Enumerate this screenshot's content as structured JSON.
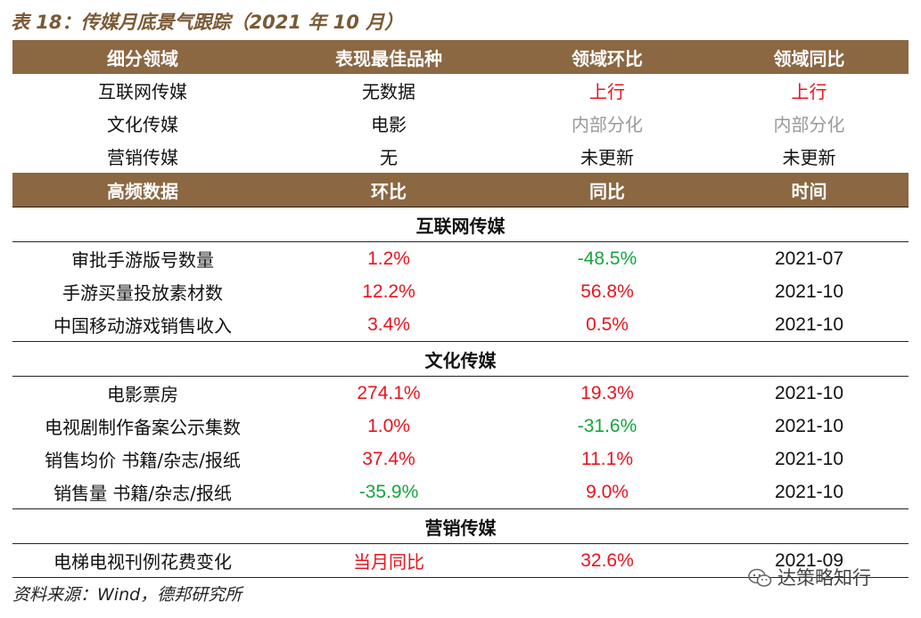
{
  "title": "表 18：传媒月底景气跟踪（2021 年 10 月）",
  "header1": [
    "细分领域",
    "表现最佳品种",
    "领域环比",
    "领域同比"
  ],
  "top_rows": [
    {
      "field": "互联网传媒",
      "best": "无数据",
      "mom": "上行",
      "yoy": "上行",
      "mom_color": "red",
      "yoy_color": "red"
    },
    {
      "field": "文化传媒",
      "best": "电影",
      "mom": "内部分化",
      "yoy": "内部分化",
      "mom_color": "gray",
      "yoy_color": "gray"
    },
    {
      "field": "营销传媒",
      "best": "无",
      "mom": "未更新",
      "yoy": "未更新",
      "mom_color": "black",
      "yoy_color": "black"
    }
  ],
  "header2": [
    "高频数据",
    "环比",
    "同比",
    "时间"
  ],
  "sections": [
    {
      "name": "互联网传媒",
      "rows": [
        {
          "item": "审批手游版号数量",
          "mom": "1.2%",
          "yoy": "-48.5%",
          "time": "2021-07",
          "mom_color": "red",
          "yoy_color": "green"
        },
        {
          "item": "手游买量投放素材数",
          "mom": "12.2%",
          "yoy": "56.8%",
          "time": "2021-10",
          "mom_color": "red",
          "yoy_color": "red"
        },
        {
          "item": "中国移动游戏销售收入",
          "mom": "3.4%",
          "yoy": "0.5%",
          "time": "2021-10",
          "mom_color": "red",
          "yoy_color": "red"
        }
      ]
    },
    {
      "name": "文化传媒",
      "rows": [
        {
          "item": "电影票房",
          "mom": "274.1%",
          "yoy": "19.3%",
          "time": "2021-10",
          "mom_color": "red",
          "yoy_color": "red"
        },
        {
          "item": "电视剧制作备案公示集数",
          "mom": "1.0%",
          "yoy": "-31.6%",
          "time": "2021-10",
          "mom_color": "red",
          "yoy_color": "green"
        },
        {
          "item": "销售均价 书籍/杂志/报纸",
          "mom": "37.4%",
          "yoy": "11.1%",
          "time": "2021-10",
          "mom_color": "red",
          "yoy_color": "red"
        },
        {
          "item": "销售量 书籍/杂志/报纸",
          "mom": "-35.9%",
          "yoy": "9.0%",
          "time": "2021-10",
          "mom_color": "green",
          "yoy_color": "red"
        }
      ]
    },
    {
      "name": "营销传媒",
      "rows": [
        {
          "item": "电梯电视刊例花费变化",
          "mom": "当月同比",
          "yoy": "32.6%",
          "time": "2021-09",
          "mom_color": "red",
          "yoy_color": "red"
        }
      ]
    }
  ],
  "source": "资料来源：Wind，德邦研究所",
  "watermark": "达策略知行",
  "watermark_icon": "wechat-icon",
  "colors": {
    "header_bg": "#8b6742",
    "title": "#7a5a36",
    "red": "#e8141e",
    "green": "#14a53c",
    "gray": "#9a9a9a"
  }
}
